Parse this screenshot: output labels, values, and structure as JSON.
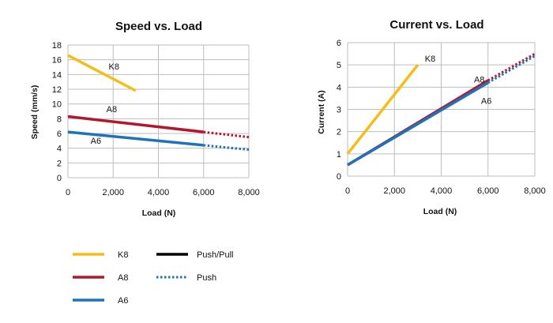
{
  "colors": {
    "K8": "#f4be1a",
    "A8": "#b3172d",
    "A6": "#1f73b9",
    "grid": "#bdbdbd",
    "text": "#111111"
  },
  "chart_data": [
    {
      "type": "line",
      "title": "Speed vs. Load",
      "xlabel": "Load (N)",
      "ylabel": "Speed (mm/s)",
      "xlim": [
        0,
        8000
      ],
      "ylim": [
        0,
        18
      ],
      "xticks": [
        0,
        2000,
        4000,
        6000,
        8000
      ],
      "xtick_labels": [
        "0",
        "2,000",
        "4,000",
        "6,000",
        "8,000"
      ],
      "yticks": [
        0,
        2,
        4,
        6,
        8,
        10,
        12,
        14,
        16,
        18
      ],
      "ytick_labels": [
        "0",
        "2",
        "4",
        "6",
        "8",
        "10",
        "12",
        "14",
        "16",
        "18"
      ],
      "grid": true,
      "series": [
        {
          "name": "K8",
          "color": "#f4be1a",
          "solid": [
            [
              0,
              16.6
            ],
            [
              3000,
              11.8
            ]
          ],
          "dotted": []
        },
        {
          "name": "A8",
          "color": "#b3172d",
          "solid": [
            [
              0,
              8.3
            ],
            [
              6000,
              6.2
            ]
          ],
          "dotted": [
            [
              6000,
              6.2
            ],
            [
              8000,
              5.5
            ]
          ]
        },
        {
          "name": "A6",
          "color": "#1f73b9",
          "solid": [
            [
              0,
              6.2
            ],
            [
              6000,
              4.4
            ]
          ],
          "dotted": [
            [
              6000,
              4.4
            ],
            [
              8000,
              3.8
            ]
          ]
        }
      ],
      "annotations": [
        {
          "text": "K8",
          "x": 1800,
          "y": 14.7
        },
        {
          "text": "A8",
          "x": 1700,
          "y": 8.9
        },
        {
          "text": "A6",
          "x": 1000,
          "y": 4.6
        }
      ]
    },
    {
      "type": "line",
      "title": "Current  vs. Load",
      "xlabel": "Load (N)",
      "ylabel": "Current (A)",
      "xlim": [
        0,
        8000
      ],
      "ylim": [
        0,
        6
      ],
      "xticks": [
        0,
        2000,
        4000,
        6000,
        8000
      ],
      "xtick_labels": [
        "0",
        "2,000",
        "4,000",
        "6,000",
        "8,000"
      ],
      "yticks": [
        0,
        1,
        2,
        3,
        4,
        5,
        6
      ],
      "ytick_labels": [
        "0",
        "1",
        "2",
        "3",
        "4",
        "5",
        "6"
      ],
      "grid": true,
      "series": [
        {
          "name": "K8",
          "color": "#f4be1a",
          "solid": [
            [
              0,
              1.0
            ],
            [
              3000,
              5.0
            ]
          ],
          "dotted": []
        },
        {
          "name": "A8",
          "color": "#b3172d",
          "solid": [
            [
              0,
              0.5
            ],
            [
              6000,
              4.3
            ]
          ],
          "dotted": [
            [
              6000,
              4.3
            ],
            [
              8000,
              5.5
            ]
          ]
        },
        {
          "name": "A6",
          "color": "#1f73b9",
          "solid": [
            [
              0,
              0.5
            ],
            [
              6000,
              4.2
            ]
          ],
          "dotted": [
            [
              6000,
              4.2
            ],
            [
              8000,
              5.4
            ]
          ]
        }
      ],
      "annotations": [
        {
          "text": "K8",
          "x": 3300,
          "y": 5.15
        },
        {
          "text": "A8",
          "x": 5400,
          "y": 4.2
        },
        {
          "text": "A6",
          "x": 5700,
          "y": 3.25
        }
      ]
    }
  ],
  "legend": {
    "items": [
      {
        "label": "K8",
        "style": "solid",
        "color": "#f4be1a"
      },
      {
        "label": "A8",
        "style": "solid",
        "color": "#b3172d"
      },
      {
        "label": "A6",
        "style": "solid",
        "color": "#1f73b9"
      },
      {
        "label": "Push/Pull",
        "style": "solid",
        "color": "#000000"
      },
      {
        "label": "Push",
        "style": "dotted",
        "color": "#1f73b9"
      }
    ]
  }
}
